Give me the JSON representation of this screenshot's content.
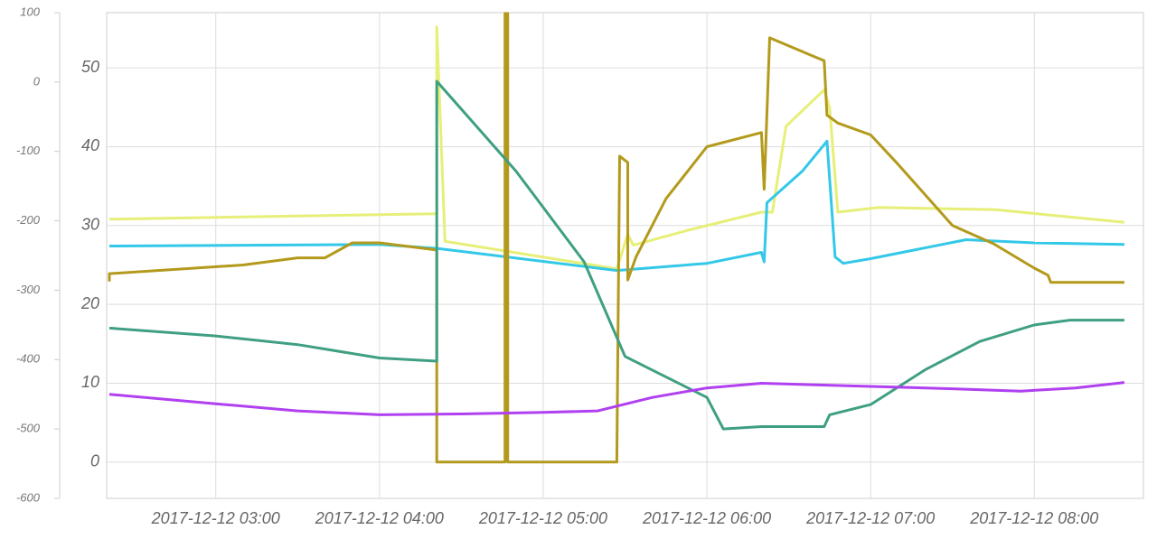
{
  "chart_data": {
    "type": "line",
    "xlim": [
      "2017-12-12 02:20",
      "2017-12-12 08:40"
    ],
    "xticks": [
      "2017-12-12 03:00",
      "2017-12-12 04:00",
      "2017-12-12 05:00",
      "2017-12-12 06:00",
      "2017-12-12 07:00",
      "2017-12-12 08:00"
    ],
    "ylim": [
      -4.6,
      57
    ],
    "yticks": [
      0,
      10,
      20,
      30,
      40,
      50
    ],
    "y2lim": [
      -600,
      100
    ],
    "y2ticks": [
      -600,
      -500,
      -400,
      -300,
      -200,
      -100,
      0,
      100
    ],
    "grid": true,
    "series": [
      {
        "color": "#e6ef78",
        "x": [
          "2017-12-12 02:21",
          "2017-12-12 04:21",
          "2017-12-12 04:21",
          "2017-12-12 04:24",
          "2017-12-12 05:27",
          "2017-12-12 05:31",
          "2017-12-12 05:33",
          "2017-12-12 05:53",
          "2017-12-12 06:20",
          "2017-12-12 06:24",
          "2017-12-12 06:29",
          "2017-12-12 06:43",
          "2017-12-12 06:45",
          "2017-12-12 06:48",
          "2017-12-12 07:03",
          "2017-12-12 07:46",
          "2017-12-12 08:33"
        ],
        "values": [
          30.8,
          31.5,
          55.2,
          28,
          24.5,
          28.9,
          27.5,
          29.4,
          31.7,
          31.7,
          42.6,
          47.2,
          44.9,
          31.7,
          32.3,
          32,
          30.4
        ]
      },
      {
        "color": "#33c8e8",
        "x": [
          "2017-12-12 02:21",
          "2017-12-12 04:00",
          "2017-12-12 04:21",
          "2017-12-12 05:27",
          "2017-12-12 06:00",
          "2017-12-12 06:20",
          "2017-12-12 06:21",
          "2017-12-12 06:22",
          "2017-12-12 06:35",
          "2017-12-12 06:44",
          "2017-12-12 06:47",
          "2017-12-12 06:50",
          "2017-12-12 07:00",
          "2017-12-12 07:35",
          "2017-12-12 08:00",
          "2017-12-12 08:33"
        ],
        "values": [
          27.4,
          27.6,
          27.1,
          24.3,
          25.2,
          26.6,
          25.4,
          32.9,
          36.9,
          40.7,
          26,
          25.2,
          25.8,
          28.2,
          27.8,
          27.6
        ]
      },
      {
        "color": "#b39a1c",
        "x": [
          "2017-12-12 02:21",
          "2017-12-12 02:21",
          "2017-12-12 03:10",
          "2017-12-12 03:30",
          "2017-12-12 03:40",
          "2017-12-12 03:50",
          "2017-12-12 04:00",
          "2017-12-12 04:21",
          "2017-12-12 04:21",
          "2017-12-12 04:46",
          "2017-12-12 04:46",
          "2017-12-12 04:47",
          "2017-12-12 04:47",
          "2017-12-12 05:27",
          "2017-12-12 05:28",
          "2017-12-12 05:31",
          "2017-12-12 05:31",
          "2017-12-12 05:34",
          "2017-12-12 05:45",
          "2017-12-12 06:00",
          "2017-12-12 06:20",
          "2017-12-12 06:21",
          "2017-12-12 06:23",
          "2017-12-12 06:43",
          "2017-12-12 06:44",
          "2017-12-12 06:48",
          "2017-12-12 07:00",
          "2017-12-12 07:10",
          "2017-12-12 07:30",
          "2017-12-12 07:45",
          "2017-12-12 08:00",
          "2017-12-12 08:05",
          "2017-12-12 08:06",
          "2017-12-12 08:33"
        ],
        "values": [
          22.9,
          23.9,
          25,
          25.9,
          25.9,
          27.8,
          27.8,
          26.9,
          0,
          0,
          56.9,
          56.9,
          0,
          0,
          38.8,
          38,
          23.1,
          26,
          33.4,
          40,
          41.8,
          34.6,
          53.8,
          50.9,
          44,
          43,
          41.5,
          37.8,
          30,
          27.7,
          24.6,
          23.7,
          22.8,
          22.8
        ]
      },
      {
        "color": "#3f9f83",
        "x": [
          "2017-12-12 02:21",
          "2017-12-12 03:00",
          "2017-12-12 03:30",
          "2017-12-12 04:00",
          "2017-12-12 04:21",
          "2017-12-12 04:21",
          "2017-12-12 04:50",
          "2017-12-12 05:15",
          "2017-12-12 05:30",
          "2017-12-12 06:00",
          "2017-12-12 06:06",
          "2017-12-12 06:20",
          "2017-12-12 06:43",
          "2017-12-12 06:45",
          "2017-12-12 07:00",
          "2017-12-12 07:20",
          "2017-12-12 07:40",
          "2017-12-12 08:00",
          "2017-12-12 08:13",
          "2017-12-12 08:33"
        ],
        "values": [
          17,
          16,
          14.9,
          13.2,
          12.8,
          48.3,
          36.9,
          25.4,
          13.4,
          8.2,
          4.2,
          4.5,
          4.5,
          6,
          7.3,
          11.7,
          15.3,
          17.4,
          18,
          18
        ]
      },
      {
        "color": "#b040f0",
        "x": [
          "2017-12-12 02:21",
          "2017-12-12 03:00",
          "2017-12-12 03:30",
          "2017-12-12 04:00",
          "2017-12-12 04:30",
          "2017-12-12 05:00",
          "2017-12-12 05:20",
          "2017-12-12 05:40",
          "2017-12-12 06:00",
          "2017-12-12 06:20",
          "2017-12-12 07:00",
          "2017-12-12 07:30",
          "2017-12-12 07:55",
          "2017-12-12 08:15",
          "2017-12-12 08:33"
        ],
        "values": [
          8.6,
          7.4,
          6.5,
          6,
          6.1,
          6.3,
          6.5,
          8.2,
          9.4,
          10,
          9.6,
          9.3,
          9,
          9.4,
          10.1
        ]
      }
    ]
  }
}
